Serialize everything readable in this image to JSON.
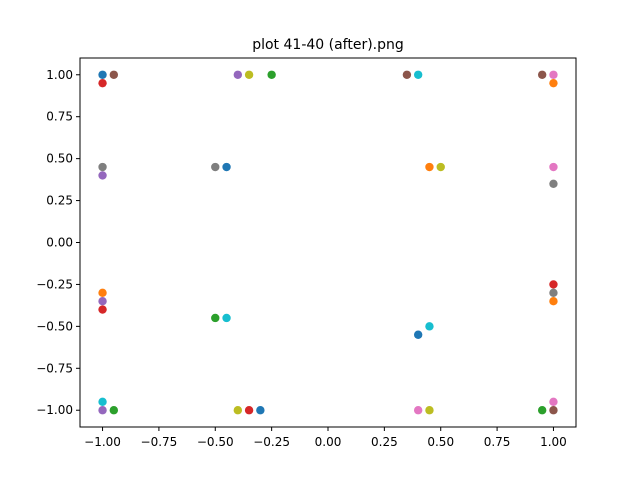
{
  "chart_data": {
    "type": "scatter",
    "title": "plot 41-40 (after).png",
    "xlabel": "",
    "ylabel": "",
    "xlim": [
      -1.1,
      1.1
    ],
    "ylim": [
      -1.1,
      1.1
    ],
    "grid": false,
    "x_ticks": [
      -1.0,
      -0.75,
      -0.5,
      -0.25,
      0.0,
      0.25,
      0.5,
      0.75,
      1.0
    ],
    "x_tick_labels": [
      "−1.00",
      "−0.75",
      "−0.50",
      "−0.25",
      "0.00",
      "0.25",
      "0.50",
      "0.75",
      "1.00"
    ],
    "y_ticks": [
      1.0,
      0.75,
      0.5,
      0.25,
      0.0,
      -0.25,
      -0.5,
      -0.75,
      -1.0
    ],
    "y_tick_labels": [
      "1.00",
      "0.75",
      "0.50",
      "0.25",
      "0.00",
      "−0.25",
      "−0.50",
      "−0.75",
      "−1.00"
    ],
    "points": [
      {
        "x": -1.0,
        "y": 1.0,
        "color": "#1f77b4"
      },
      {
        "x": -0.95,
        "y": 1.0,
        "color": "#8c564b"
      },
      {
        "x": -1.0,
        "y": 0.95,
        "color": "#d62728"
      },
      {
        "x": -0.4,
        "y": 1.0,
        "color": "#9467bd"
      },
      {
        "x": -0.35,
        "y": 1.0,
        "color": "#bcbd22"
      },
      {
        "x": -0.25,
        "y": 1.0,
        "color": "#2ca02c"
      },
      {
        "x": 0.35,
        "y": 1.0,
        "color": "#8c564b"
      },
      {
        "x": 0.4,
        "y": 1.0,
        "color": "#17becf"
      },
      {
        "x": 0.95,
        "y": 1.0,
        "color": "#8c564b"
      },
      {
        "x": 1.0,
        "y": 1.0,
        "color": "#e377c2"
      },
      {
        "x": 1.0,
        "y": 0.95,
        "color": "#ff7f0e"
      },
      {
        "x": -1.0,
        "y": 0.45,
        "color": "#7f7f7f"
      },
      {
        "x": -1.0,
        "y": 0.4,
        "color": "#9467bd"
      },
      {
        "x": -0.5,
        "y": 0.45,
        "color": "#7f7f7f"
      },
      {
        "x": -0.45,
        "y": 0.45,
        "color": "#1f77b4"
      },
      {
        "x": 0.45,
        "y": 0.45,
        "color": "#ff7f0e"
      },
      {
        "x": 0.5,
        "y": 0.45,
        "color": "#bcbd22"
      },
      {
        "x": 1.0,
        "y": 0.45,
        "color": "#e377c2"
      },
      {
        "x": 1.0,
        "y": 0.35,
        "color": "#7f7f7f"
      },
      {
        "x": -1.0,
        "y": -0.3,
        "color": "#ff7f0e"
      },
      {
        "x": -1.0,
        "y": -0.35,
        "color": "#9467bd"
      },
      {
        "x": -1.0,
        "y": -0.4,
        "color": "#d62728"
      },
      {
        "x": -0.5,
        "y": -0.45,
        "color": "#2ca02c"
      },
      {
        "x": -0.45,
        "y": -0.45,
        "color": "#17becf"
      },
      {
        "x": 0.4,
        "y": -0.55,
        "color": "#1f77b4"
      },
      {
        "x": 0.45,
        "y": -0.5,
        "color": "#17becf"
      },
      {
        "x": 1.0,
        "y": -0.25,
        "color": "#d62728"
      },
      {
        "x": 1.0,
        "y": -0.3,
        "color": "#7f7f7f"
      },
      {
        "x": 1.0,
        "y": -0.35,
        "color": "#ff7f0e"
      },
      {
        "x": -1.0,
        "y": -0.95,
        "color": "#17becf"
      },
      {
        "x": -1.0,
        "y": -1.0,
        "color": "#9467bd"
      },
      {
        "x": -0.95,
        "y": -1.0,
        "color": "#2ca02c"
      },
      {
        "x": -0.4,
        "y": -1.0,
        "color": "#bcbd22"
      },
      {
        "x": -0.35,
        "y": -1.0,
        "color": "#d62728"
      },
      {
        "x": -0.3,
        "y": -1.0,
        "color": "#1f77b4"
      },
      {
        "x": 0.4,
        "y": -1.0,
        "color": "#e377c2"
      },
      {
        "x": 0.45,
        "y": -1.0,
        "color": "#bcbd22"
      },
      {
        "x": 0.95,
        "y": -1.0,
        "color": "#2ca02c"
      },
      {
        "x": 1.0,
        "y": -1.0,
        "color": "#8c564b"
      },
      {
        "x": 1.0,
        "y": -0.95,
        "color": "#e377c2"
      }
    ]
  }
}
